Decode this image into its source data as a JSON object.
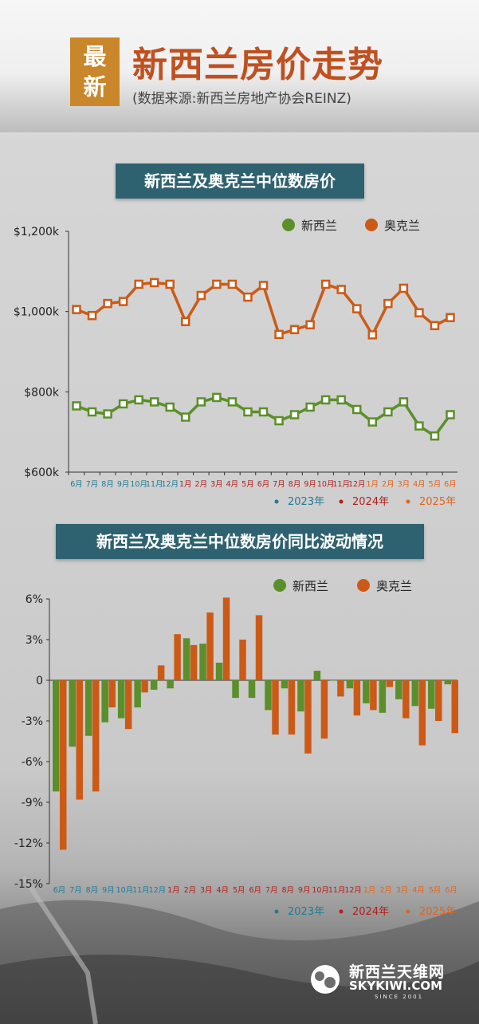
{
  "header": {
    "badge_line1": "最",
    "badge_line2": "新",
    "title": "新西兰房价走势",
    "source": "(数据来源:新西兰房地产协会REINZ)"
  },
  "colors": {
    "nz": "#5b8f2a",
    "akl": "#cc5a17",
    "y2023": "#1f7a94",
    "y2024": "#b0201c",
    "y2025": "#e0641d",
    "header_bar": "#2f6270",
    "badge": "#c9862a"
  },
  "legend": {
    "nz": "新西兰",
    "akl": "奥克兰"
  },
  "year_legend": [
    "2023年",
    "2024年",
    "2025年"
  ],
  "logo": {
    "name": "新西兰天维网",
    "domain": "SKYKIWI.COM",
    "since": "SINCE 2001"
  },
  "chart_data": [
    {
      "type": "line",
      "title": "新西兰及奥克兰中位数房价",
      "categories": [
        "6月",
        "7月",
        "8月",
        "9月",
        "10月",
        "11月",
        "12月",
        "1月",
        "2月",
        "3月",
        "4月",
        "5月",
        "6月",
        "7月",
        "8月",
        "9月",
        "10月",
        "11月",
        "12月",
        "1月",
        "2月",
        "3月",
        "4月",
        "5月",
        "6月"
      ],
      "category_year": [
        "2023",
        "2023",
        "2023",
        "2023",
        "2023",
        "2023",
        "2023",
        "2024",
        "2024",
        "2024",
        "2024",
        "2024",
        "2024",
        "2024",
        "2024",
        "2024",
        "2024",
        "2024",
        "2024",
        "2025",
        "2025",
        "2025",
        "2025",
        "2025",
        "2025"
      ],
      "ylim": [
        600000,
        1200000
      ],
      "yticks": [
        600000,
        800000,
        1000000,
        1200000
      ],
      "ytick_labels": [
        "$600k",
        "$800k",
        "$1,000k",
        "$1,200k"
      ],
      "legend_position": "top-right",
      "series": [
        {
          "name": "新西兰",
          "values": [
            765000,
            750000,
            745000,
            770000,
            780000,
            775000,
            762000,
            737000,
            775000,
            786000,
            775000,
            750000,
            750000,
            728000,
            743000,
            762000,
            780000,
            780000,
            756000,
            725000,
            750000,
            775000,
            715000,
            690000,
            743000
          ]
        },
        {
          "name": "奥克兰",
          "values": [
            1005000,
            990000,
            1020000,
            1025000,
            1068000,
            1072000,
            1068000,
            975000,
            1040000,
            1068000,
            1068000,
            1036000,
            1065000,
            943000,
            955000,
            967000,
            1068000,
            1055000,
            1007000,
            942000,
            1020000,
            1058000,
            997000,
            965000,
            985000
          ]
        }
      ]
    },
    {
      "type": "bar",
      "title": "新西兰及奥克兰中位数房价同比波动情况",
      "categories": [
        "6月",
        "7月",
        "8月",
        "9月",
        "10月",
        "11月",
        "12月",
        "1月",
        "2月",
        "3月",
        "4月",
        "5月",
        "6月",
        "7月",
        "8月",
        "9月",
        "10月",
        "11月",
        "12月",
        "1月",
        "2月",
        "3月",
        "4月",
        "5月",
        "6月"
      ],
      "category_year": [
        "2023",
        "2023",
        "2023",
        "2023",
        "2023",
        "2023",
        "2023",
        "2024",
        "2024",
        "2024",
        "2024",
        "2024",
        "2024",
        "2024",
        "2024",
        "2024",
        "2024",
        "2024",
        "2024",
        "2025",
        "2025",
        "2025",
        "2025",
        "2025",
        "2025"
      ],
      "ylim": [
        -15,
        6
      ],
      "yticks": [
        -15,
        -12,
        -9,
        -6,
        -3,
        0,
        3,
        6
      ],
      "ytick_labels": [
        "-15%",
        "-12%",
        "-9%",
        "-6%",
        "-3%",
        "0",
        "3%",
        "6%"
      ],
      "legend_position": "top-right",
      "series": [
        {
          "name": "新西兰",
          "values": [
            -8.2,
            -4.9,
            -4.1,
            -3.1,
            -2.8,
            -2.0,
            -0.7,
            -0.6,
            3.1,
            2.7,
            1.3,
            -1.3,
            -1.3,
            -2.2,
            -0.6,
            -2.3,
            0.7,
            0.0,
            -0.6,
            -1.7,
            -2.4,
            -1.4,
            -1.9,
            -2.1,
            -0.3
          ]
        },
        {
          "name": "奥克兰",
          "values": [
            -12.5,
            -8.8,
            -8.2,
            -2.0,
            -3.6,
            -0.9,
            1.1,
            3.4,
            2.6,
            5.0,
            6.1,
            3.0,
            4.8,
            -4.0,
            -4.0,
            -5.4,
            -4.3,
            -1.2,
            -2.6,
            -2.2,
            -0.5,
            -2.8,
            -4.8,
            -3.0,
            -3.9
          ]
        }
      ]
    }
  ]
}
